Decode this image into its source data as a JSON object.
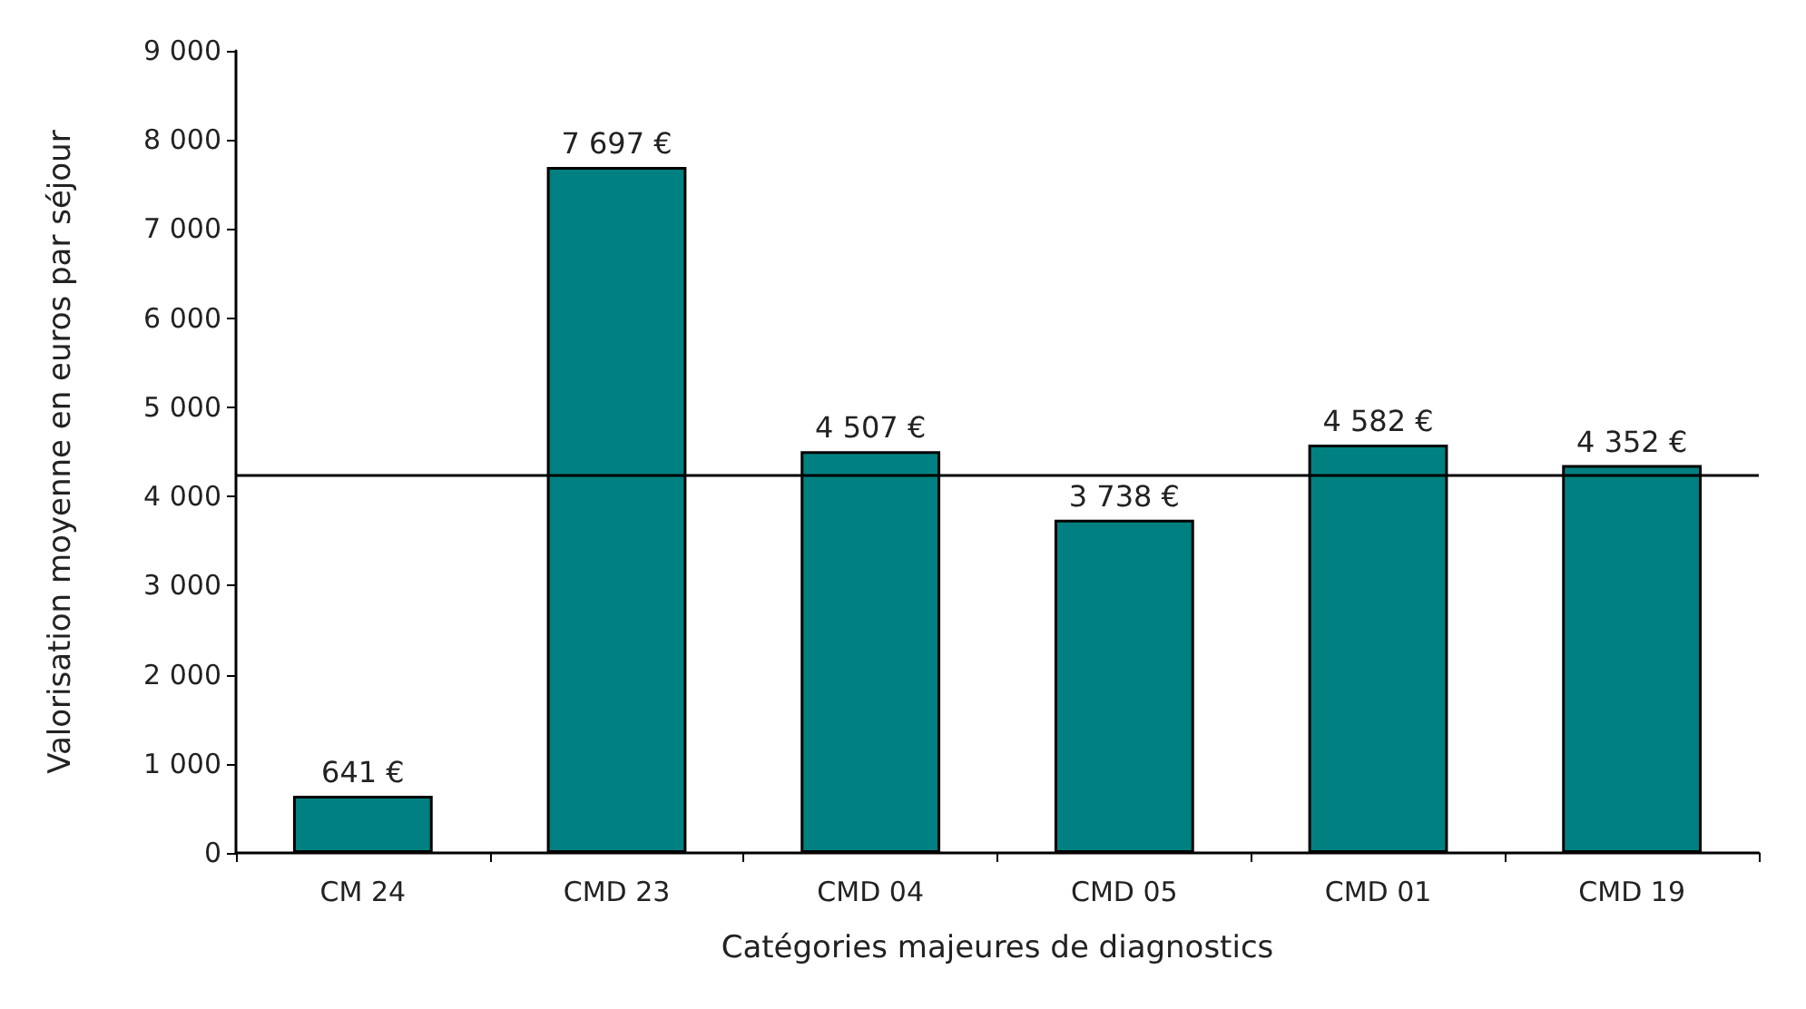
{
  "chart_data": {
    "type": "bar",
    "xlabel": "Catégories majeures de diagnostics",
    "ylabel": "Valorisation moyenne en euros par séjour",
    "categories": [
      "CM 24",
      "CMD 23",
      "CMD 04",
      "CMD 05",
      "CMD 01",
      "CMD 19"
    ],
    "values": [
      641,
      7697,
      4507,
      3738,
      4582,
      4352
    ],
    "value_labels": [
      "641 €",
      "7 697 €",
      "4 507 €",
      "3 738 €",
      "4 582 €",
      "4 352 €"
    ],
    "color": "#008080",
    "ylim": [
      0,
      9000
    ],
    "yticks": [
      {
        "value": 0,
        "label": "0"
      },
      {
        "value": 1000,
        "label": "1 000"
      },
      {
        "value": 2000,
        "label": "2 000"
      },
      {
        "value": 3000,
        "label": "3 000"
      },
      {
        "value": 4000,
        "label": "4 000"
      },
      {
        "value": 5000,
        "label": "5 000"
      },
      {
        "value": 6000,
        "label": "6 000"
      },
      {
        "value": 7000,
        "label": "7 000"
      },
      {
        "value": 8000,
        "label": "8 000"
      },
      {
        "value": 9000,
        "label": "9 000"
      }
    ],
    "ref_lines": [
      {
        "axis": "y",
        "value": 4250,
        "color": "#000000"
      }
    ],
    "grid": false
  }
}
